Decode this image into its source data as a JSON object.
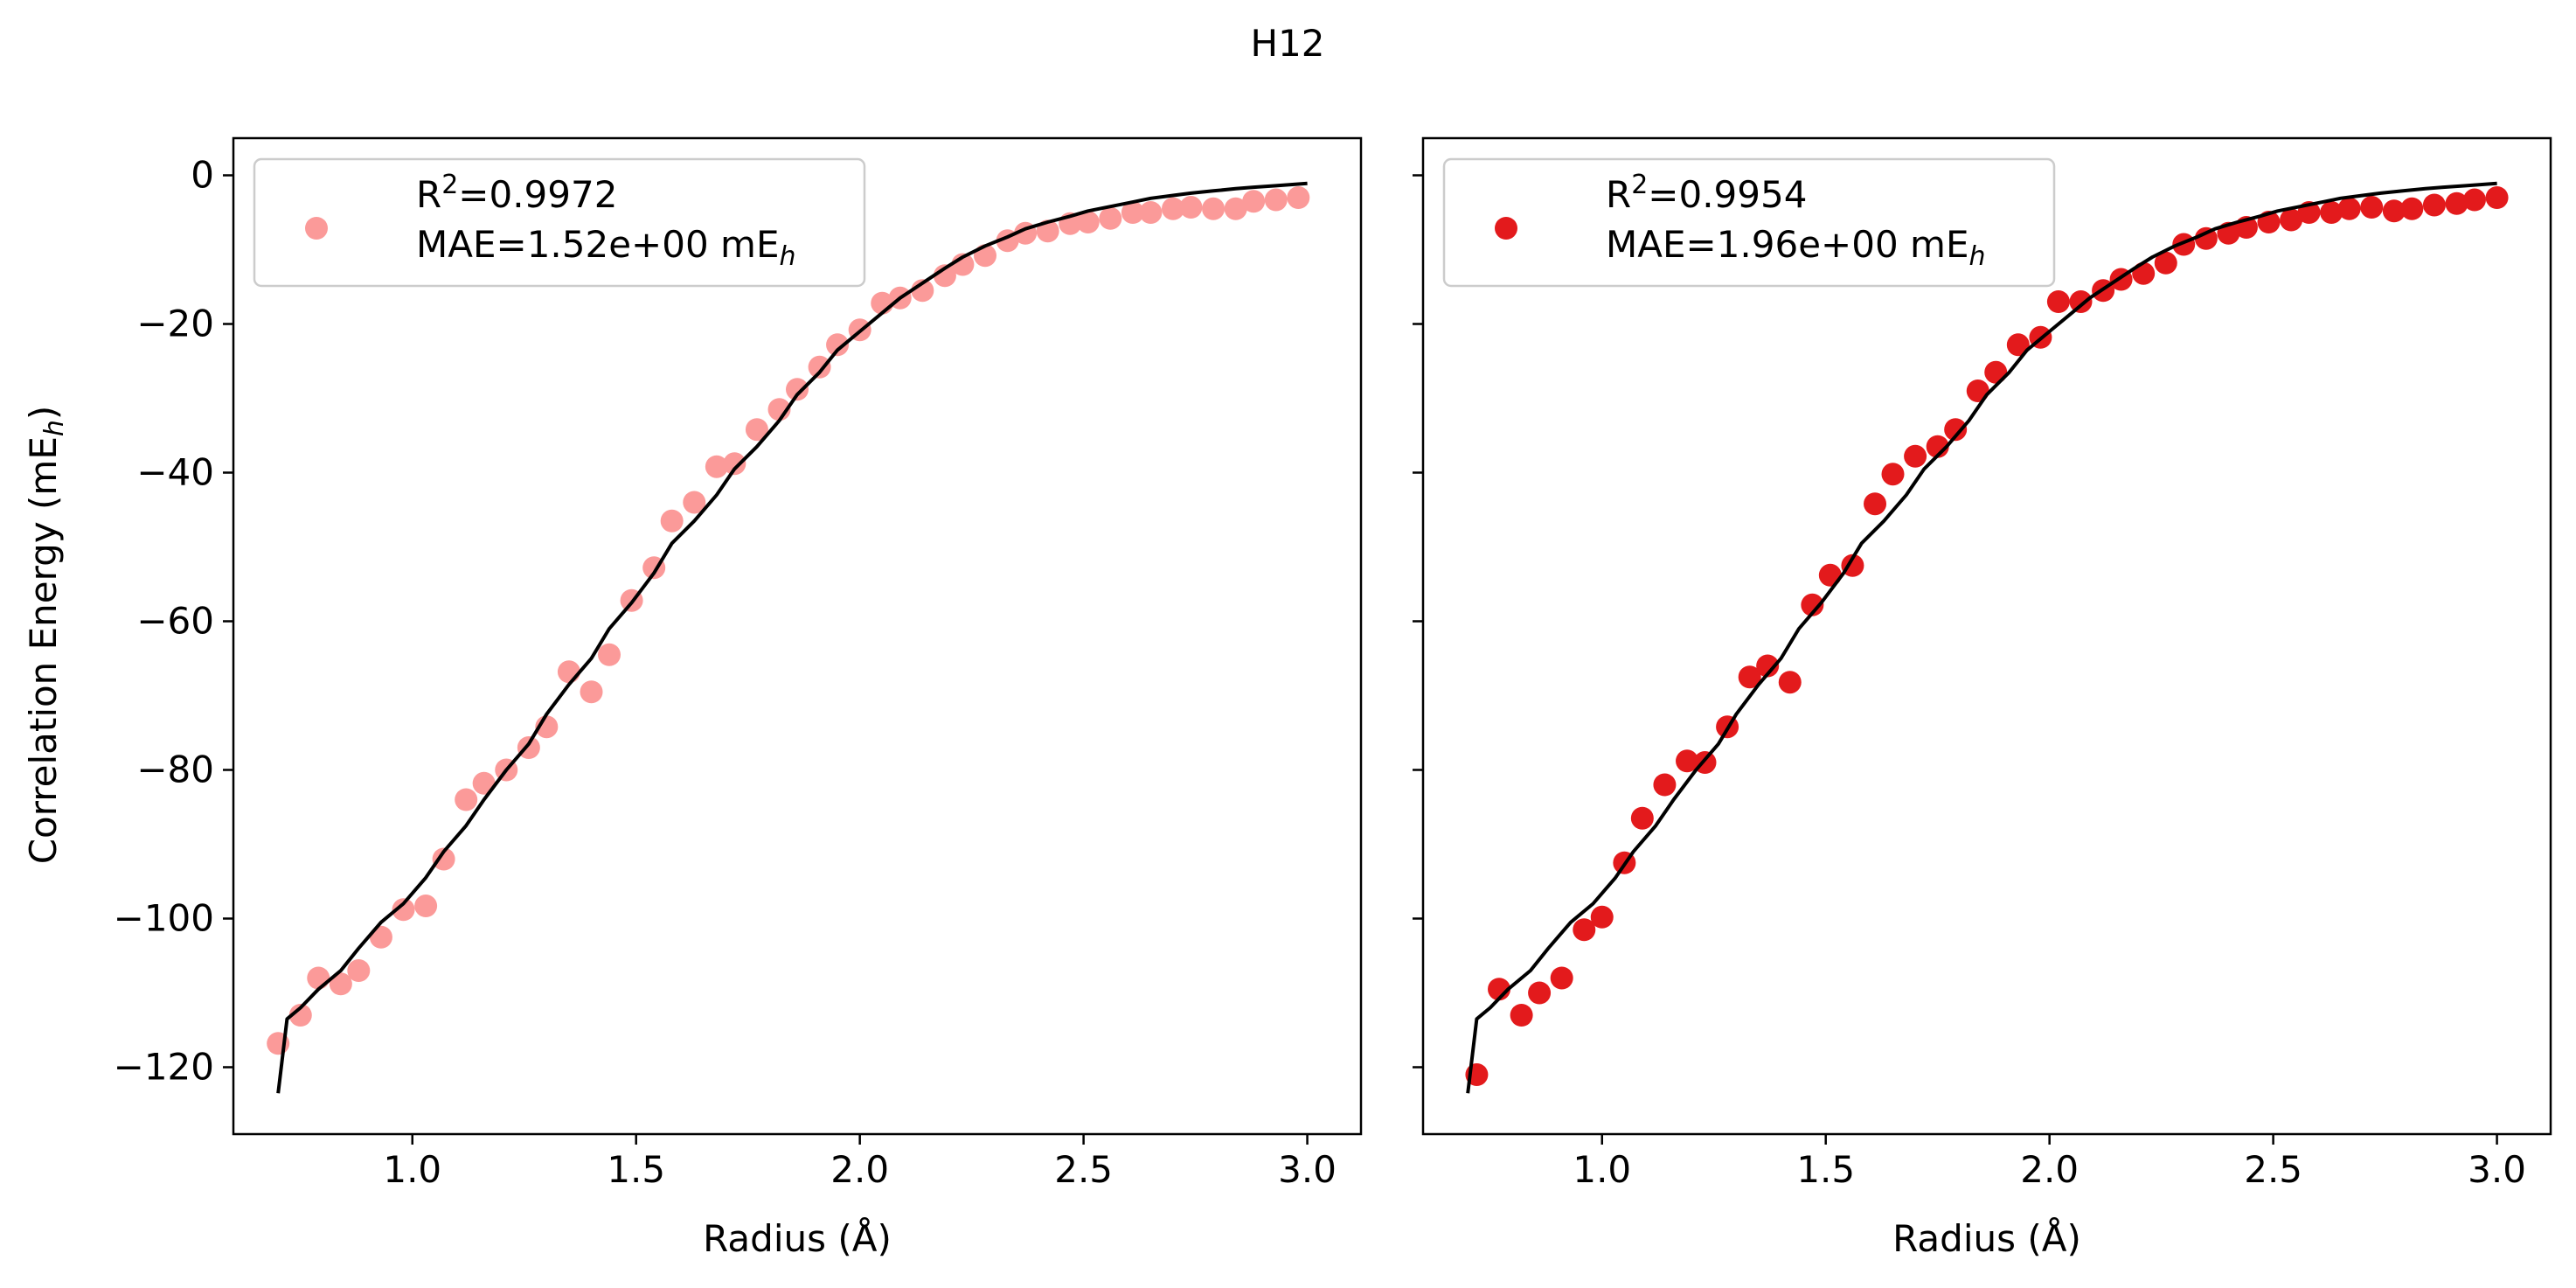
{
  "figure": {
    "title": "H12",
    "ylabel": "Correlation Energy (mE",
    "ylabel_sub": "h",
    "ylabel_close": ")",
    "xlabel": "Radius (Å)"
  },
  "chart_data": [
    {
      "type": "scatter",
      "title": "",
      "xlabel": "Radius (Å)",
      "ylabel": "Correlation Energy (mE_h)",
      "xlim": [
        0.6,
        3.12
      ],
      "ylim": [
        -129,
        5
      ],
      "xticks": [
        1.0,
        1.5,
        2.0,
        2.5,
        3.0
      ],
      "xtick_labels": [
        "1.0",
        "1.5",
        "2.0",
        "2.5",
        "3.0"
      ],
      "yticks": [
        0,
        -20,
        -40,
        -60,
        -80,
        -100,
        -120
      ],
      "ytick_labels": [
        "0",
        "−20",
        "−40",
        "−60",
        "−80",
        "−100",
        "−120"
      ],
      "grid": false,
      "legend_position": "upper-left",
      "legend": {
        "r2_prefix": "R",
        "r2_sup": "2",
        "r2_value": "=0.9972",
        "mae_prefix": "MAE=1.52e+00 mE",
        "mae_sub": "h"
      },
      "marker_color": "#fb9a99",
      "series": [
        {
          "kind": "points",
          "x": [
            0.7,
            0.75,
            0.79,
            0.84,
            0.88,
            0.93,
            0.98,
            1.03,
            1.07,
            1.12,
            1.16,
            1.21,
            1.26,
            1.3,
            1.35,
            1.4,
            1.44,
            1.49,
            1.54,
            1.58,
            1.63,
            1.68,
            1.72,
            1.77,
            1.82,
            1.86,
            1.91,
            1.95,
            2.0,
            2.05,
            2.09,
            2.14,
            2.19,
            2.23,
            2.28,
            2.33,
            2.37,
            2.42,
            2.47,
            2.51,
            2.56,
            2.61,
            2.65,
            2.7,
            2.74,
            2.79,
            2.84,
            2.88,
            2.93,
            2.98
          ],
          "y": [
            -116.8,
            -113.0,
            -108.0,
            -108.8,
            -107.0,
            -102.5,
            -98.8,
            -98.3,
            -92.0,
            -84.0,
            -81.8,
            -80.0,
            -77.0,
            -74.2,
            -66.8,
            -69.5,
            -64.5,
            -57.2,
            -52.8,
            -46.5,
            -44.0,
            -39.2,
            -38.8,
            -34.2,
            -31.5,
            -28.8,
            -25.8,
            -22.8,
            -20.8,
            -17.2,
            -16.5,
            -15.5,
            -13.5,
            -12.0,
            -10.8,
            -8.8,
            -7.8,
            -7.5,
            -6.5,
            -6.3,
            -5.8,
            -5.0,
            -5.0,
            -4.5,
            -4.3,
            -4.5,
            -4.5,
            -3.5,
            -3.3,
            -3.0
          ]
        },
        {
          "kind": "line",
          "color": "#000000",
          "x": [
            0.7,
            0.72,
            0.75,
            0.79,
            0.84,
            0.88,
            0.93,
            0.98,
            1.03,
            1.07,
            1.12,
            1.16,
            1.21,
            1.26,
            1.3,
            1.35,
            1.4,
            1.44,
            1.49,
            1.54,
            1.58,
            1.63,
            1.68,
            1.72,
            1.77,
            1.82,
            1.86,
            1.91,
            1.95,
            2.0,
            2.05,
            2.09,
            2.14,
            2.19,
            2.23,
            2.28,
            2.33,
            2.37,
            2.42,
            2.47,
            2.51,
            2.56,
            2.61,
            2.65,
            2.7,
            2.74,
            2.79,
            2.84,
            2.88,
            2.93,
            3.0
          ],
          "y": [
            -123.5,
            -113.5,
            -112.0,
            -109.5,
            -107.0,
            -104.0,
            -100.5,
            -98.0,
            -94.5,
            -91.0,
            -87.5,
            -84.0,
            -80.0,
            -76.5,
            -72.5,
            -68.5,
            -65.0,
            -61.0,
            -57.5,
            -53.5,
            -49.5,
            -46.5,
            -43.0,
            -39.5,
            -36.5,
            -33.0,
            -29.5,
            -26.5,
            -23.5,
            -21.0,
            -18.5,
            -16.5,
            -14.5,
            -12.5,
            -11.0,
            -9.5,
            -8.3,
            -7.2,
            -6.3,
            -5.5,
            -4.8,
            -4.2,
            -3.6,
            -3.1,
            -2.7,
            -2.4,
            -2.1,
            -1.8,
            -1.6,
            -1.4,
            -1.1
          ]
        }
      ]
    },
    {
      "type": "scatter",
      "title": "",
      "xlabel": "Radius (Å)",
      "ylabel": "",
      "xlim": [
        0.6,
        3.12
      ],
      "ylim": [
        -129,
        5
      ],
      "xticks": [
        1.0,
        1.5,
        2.0,
        2.5,
        3.0
      ],
      "xtick_labels": [
        "1.0",
        "1.5",
        "2.0",
        "2.5",
        "3.0"
      ],
      "yticks": [
        0,
        -20,
        -40,
        -60,
        -80,
        -100,
        -120
      ],
      "ytick_labels": [],
      "grid": false,
      "legend_position": "upper-left",
      "legend": {
        "r2_prefix": "R",
        "r2_sup": "2",
        "r2_value": "=0.9954",
        "mae_prefix": "MAE=1.96e+00 mE",
        "mae_sub": "h"
      },
      "marker_color": "#e31a1c",
      "series": [
        {
          "kind": "points",
          "x": [
            0.72,
            0.77,
            0.82,
            0.86,
            0.91,
            0.96,
            1.0,
            1.05,
            1.09,
            1.14,
            1.19,
            1.23,
            1.28,
            1.33,
            1.37,
            1.42,
            1.47,
            1.51,
            1.56,
            1.61,
            1.65,
            1.7,
            1.75,
            1.79,
            1.84,
            1.88,
            1.93,
            1.98,
            2.02,
            2.07,
            2.12,
            2.16,
            2.21,
            2.26,
            2.3,
            2.35,
            2.4,
            2.44,
            2.49,
            2.54,
            2.58,
            2.63,
            2.67,
            2.72,
            2.77,
            2.81,
            2.86,
            2.91,
            2.95,
            3.0
          ],
          "y": [
            -121.0,
            -109.5,
            -113.0,
            -110.0,
            -108.0,
            -101.5,
            -99.8,
            -92.5,
            -86.5,
            -82.0,
            -78.8,
            -79.0,
            -74.2,
            -67.5,
            -66.0,
            -68.2,
            -57.8,
            -53.8,
            -52.5,
            -44.2,
            -40.2,
            -37.8,
            -36.5,
            -34.2,
            -29.0,
            -26.5,
            -22.8,
            -21.8,
            -17.0,
            -17.0,
            -15.5,
            -14.0,
            -13.2,
            -11.8,
            -9.3,
            -8.5,
            -7.8,
            -7.0,
            -6.3,
            -6.0,
            -5.0,
            -5.0,
            -4.5,
            -4.3,
            -4.8,
            -4.5,
            -4.0,
            -3.8,
            -3.3,
            -3.0
          ]
        },
        {
          "kind": "line",
          "color": "#000000",
          "x": [
            0.7,
            0.72,
            0.75,
            0.79,
            0.84,
            0.88,
            0.93,
            0.98,
            1.03,
            1.07,
            1.12,
            1.16,
            1.21,
            1.26,
            1.3,
            1.35,
            1.4,
            1.44,
            1.49,
            1.54,
            1.58,
            1.63,
            1.68,
            1.72,
            1.77,
            1.82,
            1.86,
            1.91,
            1.95,
            2.0,
            2.05,
            2.09,
            2.14,
            2.19,
            2.23,
            2.28,
            2.33,
            2.37,
            2.42,
            2.47,
            2.51,
            2.56,
            2.61,
            2.65,
            2.7,
            2.74,
            2.79,
            2.84,
            2.88,
            2.93,
            3.0
          ],
          "y": [
            -123.5,
            -113.5,
            -112.0,
            -109.5,
            -107.0,
            -104.0,
            -100.5,
            -98.0,
            -94.5,
            -91.0,
            -87.5,
            -84.0,
            -80.0,
            -76.5,
            -72.5,
            -68.5,
            -65.0,
            -61.0,
            -57.5,
            -53.5,
            -49.5,
            -46.5,
            -43.0,
            -39.5,
            -36.5,
            -33.0,
            -29.5,
            -26.5,
            -23.5,
            -21.0,
            -18.5,
            -16.5,
            -14.5,
            -12.5,
            -11.0,
            -9.5,
            -8.3,
            -7.2,
            -6.3,
            -5.5,
            -4.8,
            -4.2,
            -3.6,
            -3.1,
            -2.7,
            -2.4,
            -2.1,
            -1.8,
            -1.6,
            -1.4,
            -1.1
          ]
        }
      ]
    }
  ]
}
